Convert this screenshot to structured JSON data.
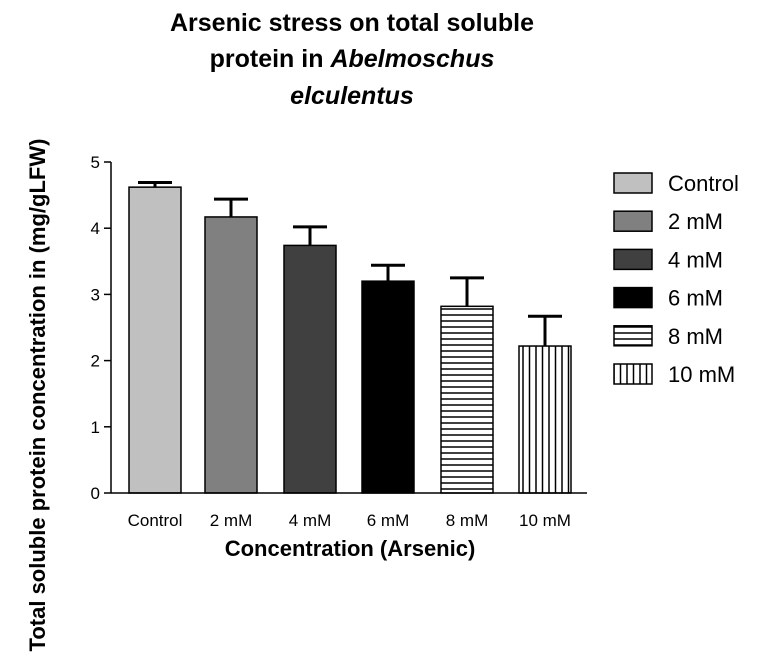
{
  "chart_data": {
    "type": "bar",
    "title_lines": [
      [
        {
          "text": "Arsenic stress on  total soluble",
          "italic": false
        }
      ],
      [
        {
          "text": "protein in ",
          "italic": false
        },
        {
          "text": "Abelmoschus",
          "italic": true
        }
      ],
      [
        {
          "text": "elculentus",
          "italic": true
        }
      ]
    ],
    "xlabel": "Concentration (Arsenic)",
    "ylabel": "Total soluble protein concentration in (mg/gLFW)",
    "categories": [
      "Control",
      "2 mM",
      "4 mM",
      "6 mM",
      "8 mM",
      "10 mM"
    ],
    "values": [
      4.62,
      4.17,
      3.74,
      3.2,
      2.82,
      2.22
    ],
    "errors": [
      0.07,
      0.27,
      0.28,
      0.24,
      0.43,
      0.45
    ],
    "ylim": [
      0,
      5
    ],
    "yticks": [
      0,
      1,
      2,
      3,
      4,
      5
    ],
    "grid": false,
    "legend_position": "right",
    "series_styles": [
      {
        "fill": "#c0c0c0",
        "pattern": "solid"
      },
      {
        "fill": "#808080",
        "pattern": "solid"
      },
      {
        "fill": "#404040",
        "pattern": "solid"
      },
      {
        "fill": "#000000",
        "pattern": "solid"
      },
      {
        "fill": "#ffffff",
        "pattern": "horizontal-lines"
      },
      {
        "fill": "#ffffff",
        "pattern": "vertical-lines"
      }
    ]
  }
}
